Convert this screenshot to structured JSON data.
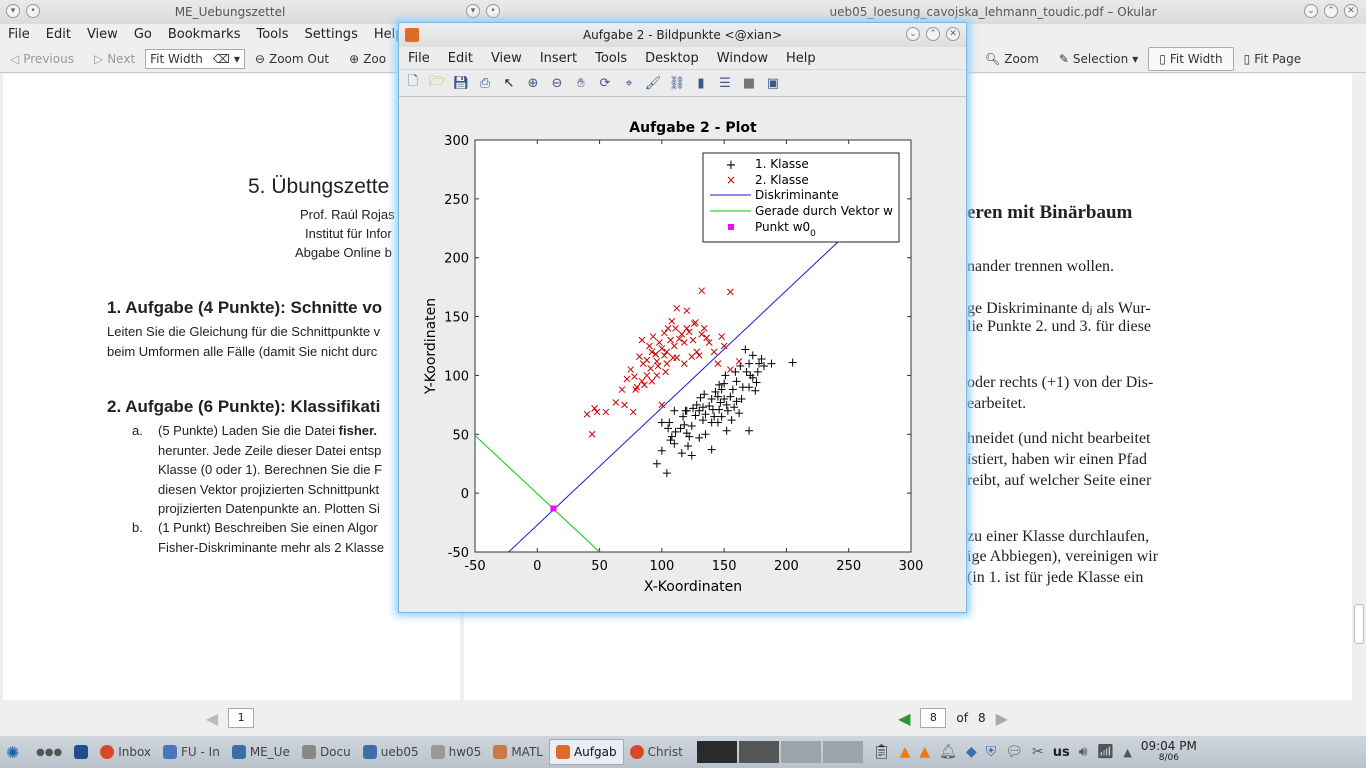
{
  "left_window": {
    "title": "ME_Uebungszettel",
    "menu": [
      "File",
      "Edit",
      "View",
      "Go",
      "Bookmarks",
      "Tools",
      "Settings",
      "Help"
    ],
    "toolbar": {
      "previous": "Previous",
      "next": "Next",
      "fit": "Fit Width",
      "zoom_out": "Zoom Out",
      "zoom_in": "Zoo"
    },
    "doc": {
      "title": "5. Übungszette",
      "line1": "Prof. Raúl Rojas",
      "line2": "Institut für Infor",
      "line3": "Abgabe Online b",
      "task1_heading": "1. Aufgabe (4 Punkte): Schnitte vo",
      "task1_text1": "Leiten Sie die Gleichung für die Schnittpunkte v",
      "task1_text2": "beim Umformen alle Fälle (damit Sie nicht durc",
      "task2_heading": "2. Aufgabe (6 Punkte): Klassifikati",
      "a_label": "a.",
      "a1_pre": "(5 Punkte) Laden Sie die Datei ",
      "a1_bold": "fisher.",
      "a2": "herunter. Jede Zeile dieser Datei entsp",
      "a3": "Klasse (0 oder 1). Berechnen Sie die F",
      "a4": "diesen Vektor projizierten Schnittpunkt",
      "a5": "projizierten Datenpunkte an. Plotten Si",
      "b_label": "b.",
      "b1": "(1 Punkt) Beschreiben Sie einen Algor",
      "b2": "Fisher-Diskriminante mehr als 2 Klasse"
    },
    "page_current": "1"
  },
  "right_window": {
    "title": "ueb05_loesung_cavojska_lehmann_toudic.pdf – Okular",
    "toolbar": {
      "zoom": "Zoom",
      "selection": "Selection",
      "fit_width": "Fit Width",
      "fit_page": "Fit Page"
    },
    "doc": {
      "heading": "eren mit Binärbaum",
      "l1": "nander trennen wollen.",
      "l2": "ge Diskriminante dⱼ als Wur-",
      "l3": "lie Punkte 2. und 3. für diese",
      "l4": "oder rechts (+1) von der Dis-",
      "l5": "earbeitet.",
      "l6": "hneidet (und nicht bearbeitet",
      "l7": "istiert, haben wir einen Pfad",
      "l8": "reibt, auf welcher Seite einer",
      "l9": "zu einer Klasse durchlaufen,",
      "l10": "ige Abbiegen), vereinigen wir",
      "l11": "(in 1. ist für jede Klasse ein"
    },
    "page_current": "8",
    "page_of": "of",
    "page_total": "8"
  },
  "matlab": {
    "title": "Aufgabe 2 - Bildpunkte <@xian>",
    "menu": [
      "File",
      "Edit",
      "View",
      "Insert",
      "Tools",
      "Desktop",
      "Window",
      "Help"
    ]
  },
  "chart_data": {
    "type": "scatter",
    "title": "Aufgabe 2 - Plot",
    "xlabel": "X-Koordinaten",
    "ylabel": "Y-Koordinaten",
    "xlim": [
      -50,
      300
    ],
    "ylim": [
      -50,
      300
    ],
    "xticks": [
      -50,
      0,
      50,
      100,
      150,
      200,
      250,
      300
    ],
    "yticks": [
      -50,
      0,
      50,
      100,
      150,
      200,
      250,
      300
    ],
    "legend": [
      "1. Klasse",
      "2. Klasse",
      "Diskriminante",
      "Gerade durch Vektor w",
      "Punkt w0"
    ],
    "legend_subscript": "0",
    "colors": {
      "class1": "#000000",
      "class2": "#cc0000",
      "disc": "#1a1acc",
      "vec": "#00cc00",
      "point": "#ff00ff"
    },
    "series": [
      {
        "name": "1. Klasse",
        "points": [
          [
            96,
            25
          ],
          [
            104,
            17
          ],
          [
            100,
            36
          ],
          [
            107,
            45
          ],
          [
            108,
            48
          ],
          [
            111,
            52
          ],
          [
            100,
            60
          ],
          [
            115,
            55
          ],
          [
            120,
            51
          ],
          [
            106,
            60
          ],
          [
            124,
            57
          ],
          [
            117,
            65
          ],
          [
            119,
            70
          ],
          [
            127,
            66
          ],
          [
            130,
            70
          ],
          [
            135,
            67
          ],
          [
            128,
            75
          ],
          [
            133,
            73
          ],
          [
            138,
            74
          ],
          [
            140,
            80
          ],
          [
            134,
            84
          ],
          [
            143,
            86
          ],
          [
            145,
            82
          ],
          [
            148,
            88
          ],
          [
            150,
            93
          ],
          [
            146,
            92
          ],
          [
            150,
            80
          ],
          [
            155,
            82
          ],
          [
            157,
            88
          ],
          [
            160,
            95
          ],
          [
            159,
            103
          ],
          [
            163,
            108
          ],
          [
            170,
            110
          ],
          [
            168,
            103
          ],
          [
            173,
            98
          ],
          [
            176,
            94
          ],
          [
            178,
            110
          ],
          [
            182,
            108
          ],
          [
            188,
            110
          ],
          [
            205,
            111
          ],
          [
            167,
            122
          ],
          [
            160,
            78
          ],
          [
            164,
            80
          ],
          [
            152,
            75
          ],
          [
            146,
            71
          ],
          [
            142,
            65
          ],
          [
            140,
            60
          ],
          [
            135,
            50
          ],
          [
            130,
            47
          ],
          [
            121,
            40
          ],
          [
            110,
            42
          ],
          [
            116,
            34
          ],
          [
            124,
            32
          ],
          [
            140,
            37
          ],
          [
            152,
            53
          ],
          [
            170,
            53
          ],
          [
            162,
            68
          ],
          [
            175,
            87
          ],
          [
            170,
            90
          ],
          [
            120,
            70
          ],
          [
            125,
            72
          ],
          [
            131,
            81
          ],
          [
            148,
            65
          ],
          [
            156,
            62
          ],
          [
            110,
            70
          ],
          [
            118,
            58
          ],
          [
            122,
            48
          ],
          [
            105,
            55
          ],
          [
            133,
            62
          ],
          [
            141,
            71
          ],
          [
            147,
            77
          ],
          [
            151,
            100
          ],
          [
            158,
            73
          ],
          [
            165,
            90
          ],
          [
            171,
            100
          ],
          [
            177,
            103
          ],
          [
            180,
            114
          ],
          [
            173,
            117
          ],
          [
            145,
            60
          ],
          [
            153,
            70
          ]
        ]
      },
      {
        "name": "2. Klasse",
        "points": [
          [
            40,
            67
          ],
          [
            44,
            50
          ],
          [
            46,
            72
          ],
          [
            48,
            69
          ],
          [
            55,
            69
          ],
          [
            63,
            77
          ],
          [
            68,
            88
          ],
          [
            72,
            97
          ],
          [
            75,
            105
          ],
          [
            78,
            99
          ],
          [
            80,
            90
          ],
          [
            84,
            95
          ],
          [
            85,
            110
          ],
          [
            88,
            113
          ],
          [
            92,
            120
          ],
          [
            90,
            125
          ],
          [
            93,
            133
          ],
          [
            95,
            118
          ],
          [
            96,
            112
          ],
          [
            98,
            128
          ],
          [
            100,
            123
          ],
          [
            102,
            117
          ],
          [
            104,
            120
          ],
          [
            105,
            140
          ],
          [
            107,
            130
          ],
          [
            108,
            146
          ],
          [
            110,
            125
          ],
          [
            112,
            115
          ],
          [
            114,
            131
          ],
          [
            116,
            135
          ],
          [
            118,
            128
          ],
          [
            120,
            140
          ],
          [
            122,
            137
          ],
          [
            125,
            130
          ],
          [
            127,
            145
          ],
          [
            128,
            120
          ],
          [
            130,
            117
          ],
          [
            132,
            135
          ],
          [
            134,
            140
          ],
          [
            136,
            132
          ],
          [
            138,
            128
          ],
          [
            142,
            120
          ],
          [
            145,
            110
          ],
          [
            148,
            133
          ],
          [
            150,
            125
          ],
          [
            132,
            172
          ],
          [
            155,
            171
          ],
          [
            155,
            105
          ],
          [
            162,
            112
          ],
          [
            86,
            92
          ],
          [
            79,
            88
          ],
          [
            70,
            75
          ],
          [
            77,
            69
          ],
          [
            100,
            75
          ],
          [
            96,
            100
          ],
          [
            91,
            106
          ],
          [
            97,
            108
          ],
          [
            104,
            110
          ],
          [
            109,
            115
          ],
          [
            95,
            118
          ],
          [
            88,
            100
          ],
          [
            102,
            136
          ],
          [
            112,
            157
          ],
          [
            120,
            155
          ],
          [
            126,
            144
          ],
          [
            84,
            130
          ],
          [
            118,
            110
          ],
          [
            124,
            116
          ],
          [
            111,
            140
          ],
          [
            103,
            103
          ],
          [
            92,
            95
          ],
          [
            82,
            116
          ]
        ]
      },
      {
        "name": "Diskriminante",
        "line": [
          [
            -23,
            -50
          ],
          [
            244,
            216
          ]
        ]
      },
      {
        "name": "Gerade durch Vektor w",
        "line": [
          [
            -50,
            49
          ],
          [
            50,
            -50
          ]
        ]
      },
      {
        "name": "Punkt w0",
        "points": [
          [
            13,
            -13
          ]
        ]
      }
    ]
  },
  "taskbar": {
    "items": [
      "Inbox",
      "FU - In",
      "ME_Ue",
      "Docu",
      "ueb05",
      "hw05",
      "MATL",
      "Aufgab",
      "Christ"
    ],
    "lang": "us",
    "time": "09:04 PM",
    "date": "8/06"
  }
}
